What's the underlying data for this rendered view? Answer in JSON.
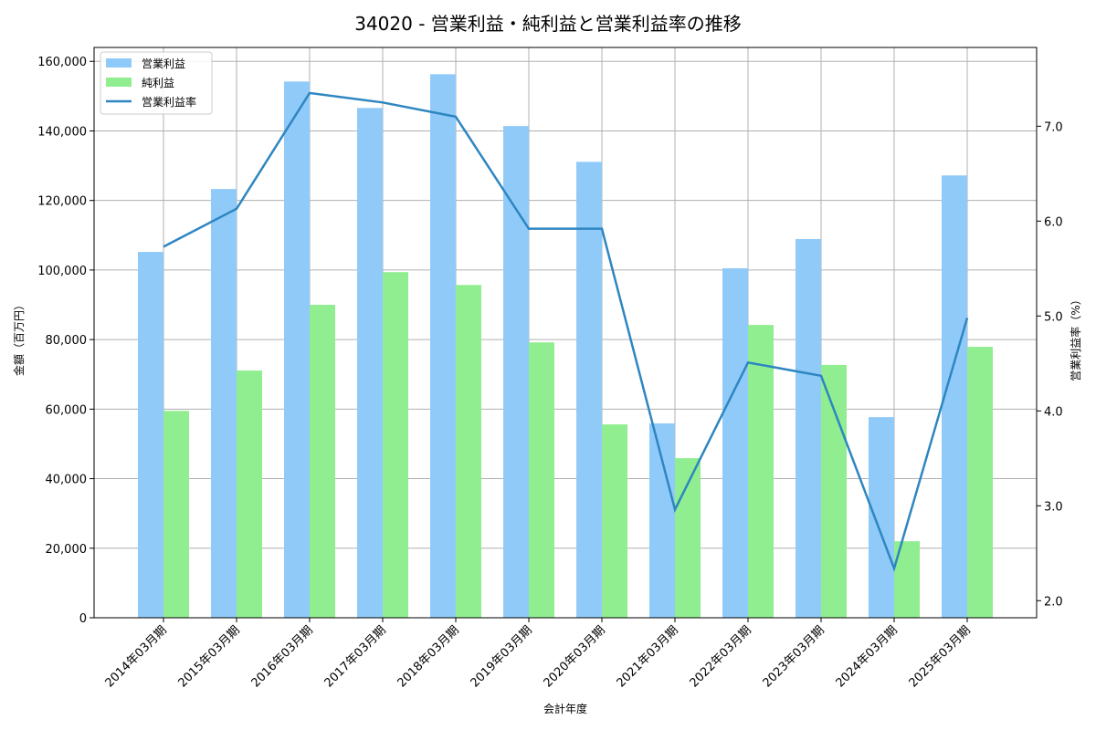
{
  "chart_data": {
    "type": "bar+line",
    "title": "34020 - 営業利益・純利益と営業利益率の推移",
    "xlabel": "会計年度",
    "ylabel": "金額（百万円）",
    "ylabel_right": "営業利益率（%）",
    "categories": [
      "2014年03月期",
      "2015年03月期",
      "2016年03月期",
      "2017年03月期",
      "2018年03月期",
      "2019年03月期",
      "2020年03月期",
      "2021年03月期",
      "2022年03月期",
      "2023年03月期",
      "2024年03月期",
      "2025年03月期"
    ],
    "series": [
      {
        "name": "営業利益",
        "type": "bar",
        "axis": "left",
        "color": "#90caf9",
        "values": [
          105200,
          123300,
          154200,
          146600,
          156300,
          141400,
          131100,
          55900,
          100500,
          108900,
          57700,
          127200
        ]
      },
      {
        "name": "純利益",
        "type": "bar",
        "axis": "left",
        "color": "#90ee90",
        "values": [
          59500,
          71100,
          90000,
          99400,
          95700,
          79200,
          55600,
          45900,
          84200,
          72700,
          22000,
          77900
        ]
      },
      {
        "name": "営業利益率",
        "type": "line",
        "axis": "right",
        "color": "#2e86c1",
        "values": [
          5.73,
          6.13,
          7.35,
          7.25,
          7.1,
          5.92,
          5.92,
          2.96,
          4.51,
          4.37,
          2.34,
          4.98
        ]
      }
    ],
    "ylim": [
      0,
      164000
    ],
    "ylim_right": [
      1.82,
      7.83
    ],
    "yticks": [
      0,
      20000,
      40000,
      60000,
      80000,
      100000,
      120000,
      140000,
      160000
    ],
    "ytick_labels": [
      "0",
      "20,000",
      "40,000",
      "60,000",
      "80,000",
      "100,000",
      "120,000",
      "140,000",
      "160,000"
    ],
    "yticks_right": [
      2.0,
      3.0,
      4.0,
      5.0,
      6.0,
      7.0
    ],
    "ytick_labels_right": [
      "2.0",
      "3.0",
      "4.0",
      "5.0",
      "6.0",
      "7.0"
    ],
    "grid": true,
    "legend_position": "upper left"
  }
}
